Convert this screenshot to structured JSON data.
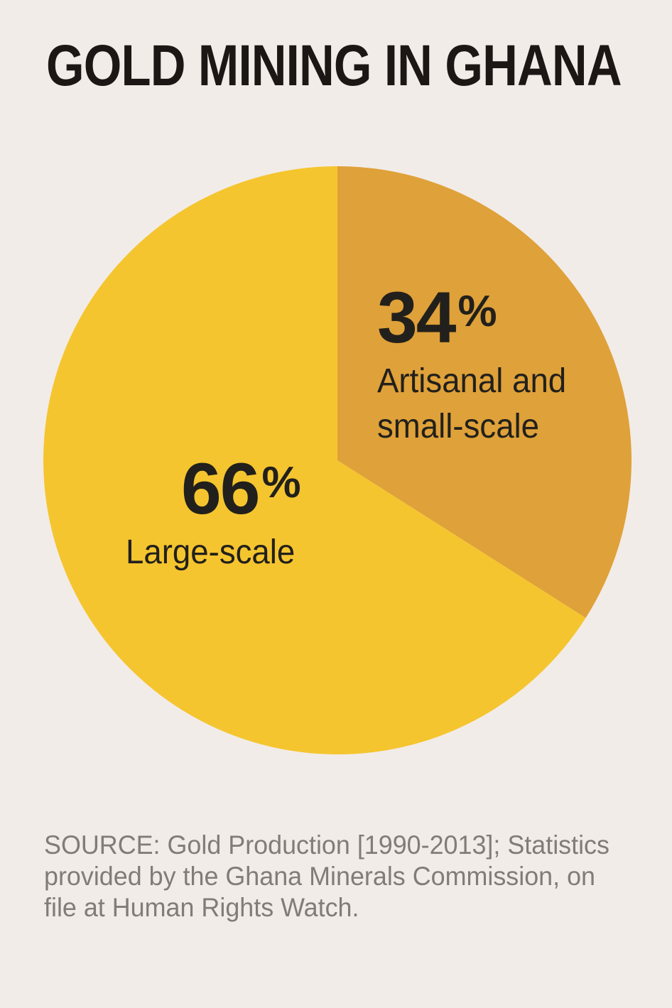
{
  "title": "GOLD MINING IN GHANA",
  "chart_data": {
    "type": "pie",
    "title": "GOLD MINING IN GHANA",
    "start_angle_deg": 0,
    "direction": "clockwise",
    "legend": "none",
    "labels_inside": true,
    "slices": [
      {
        "id": "artisanal-and-small-scale",
        "label": "Artisanal and small-scale",
        "value": 34,
        "pct_label": "34",
        "pct_sign": "%",
        "label_lines": [
          "Artisanal and",
          "small-scale"
        ],
        "color": "#DFA139"
      },
      {
        "id": "large-scale",
        "label": "Large-scale",
        "value": 66,
        "pct_label": "66",
        "pct_sign": "%",
        "label_lines": [
          "Large-scale"
        ],
        "color": "#F5C52F"
      }
    ]
  },
  "source_note": {
    "lines": [
      "SOURCE: Gold Production [1990-2013]; Statistics",
      "provided by the Ghana Minerals Commission, on",
      "file at Human Rights Watch."
    ],
    "full": "SOURCE: Gold Production [1990-2013]; Statistics provided by the Ghana Minerals Commission, on file at Human Rights Watch."
  },
  "colors": {
    "background": "#F2ECE8",
    "title_text": "#1C1714",
    "label_text": "#22201C",
    "source_text": "#827C78",
    "slice_artisanal": "#DFA139",
    "slice_large": "#F5C52F"
  }
}
